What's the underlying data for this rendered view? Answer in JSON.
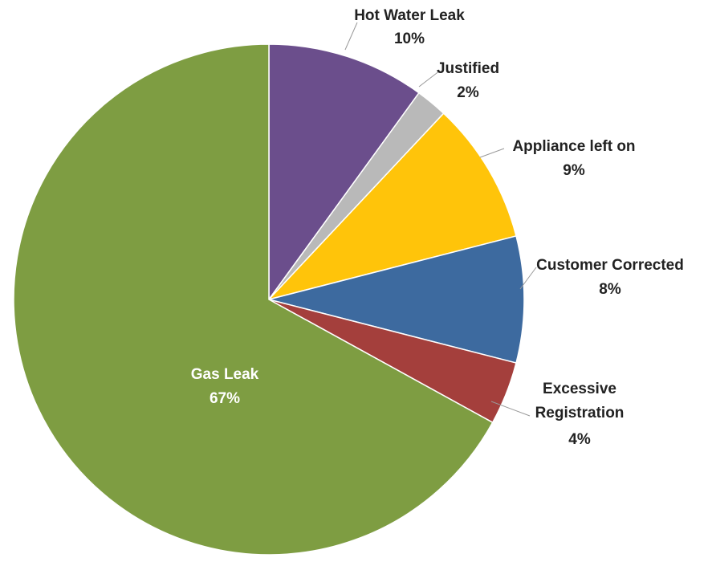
{
  "chart_data": {
    "type": "pie",
    "categories": [
      "Hot Water Leak",
      "Justified",
      "Appliance left on",
      "Customer Corrected",
      "Excessive Registration",
      "Gas Leak"
    ],
    "values": [
      10,
      2,
      9,
      8,
      4,
      67
    ],
    "value_labels": [
      "10%",
      "2%",
      "9%",
      "8%",
      "4%",
      "67%"
    ],
    "colors": [
      "#6b4e8c",
      "#b9b9b9",
      "#ffc40a",
      "#3d6a9f",
      "#a43f3c",
      "#7e9d42"
    ]
  },
  "partial_text": "n"
}
